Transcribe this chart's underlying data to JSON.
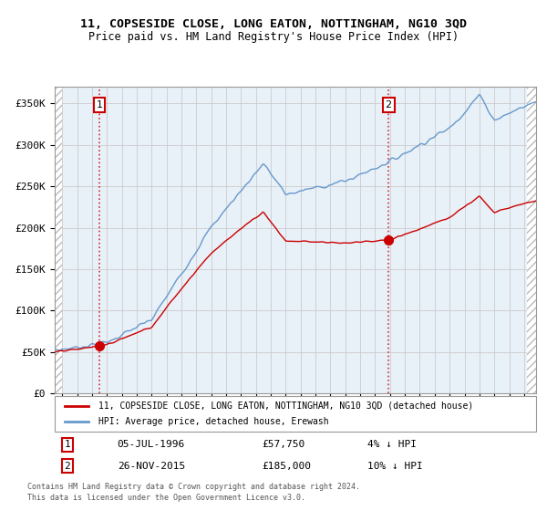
{
  "title": "11, COPSESIDE CLOSE, LONG EATON, NOTTINGHAM, NG10 3QD",
  "subtitle": "Price paid vs. HM Land Registry's House Price Index (HPI)",
  "ylim": [
    0,
    370000
  ],
  "yticks": [
    0,
    50000,
    100000,
    150000,
    200000,
    250000,
    300000,
    350000
  ],
  "ytick_labels": [
    "£0",
    "£50K",
    "£100K",
    "£150K",
    "£200K",
    "£250K",
    "£300K",
    "£350K"
  ],
  "xstart": 1993.5,
  "xend": 2025.8,
  "sale1_date": 1996.51,
  "sale1_price": 57750,
  "sale2_date": 2015.9,
  "sale2_price": 185000,
  "legend_property": "11, COPSESIDE CLOSE, LONG EATON, NOTTINGHAM, NG10 3QD (detached house)",
  "legend_hpi": "HPI: Average price, detached house, Erewash",
  "property_color": "#cc0000",
  "hpi_color": "#6699cc",
  "hatch_color": "#bbbbbb",
  "grid_color": "#cccccc",
  "plot_bg": "#e8f0f8",
  "footnote": "Contains HM Land Registry data © Crown copyright and database right 2024.\nThis data is licensed under the Open Government Licence v3.0.",
  "ann1_date": "05-JUL-1996",
  "ann1_price": "£57,750",
  "ann1_hpi": "4% ↓ HPI",
  "ann2_date": "26-NOV-2015",
  "ann2_price": "£185,000",
  "ann2_hpi": "10% ↓ HPI"
}
